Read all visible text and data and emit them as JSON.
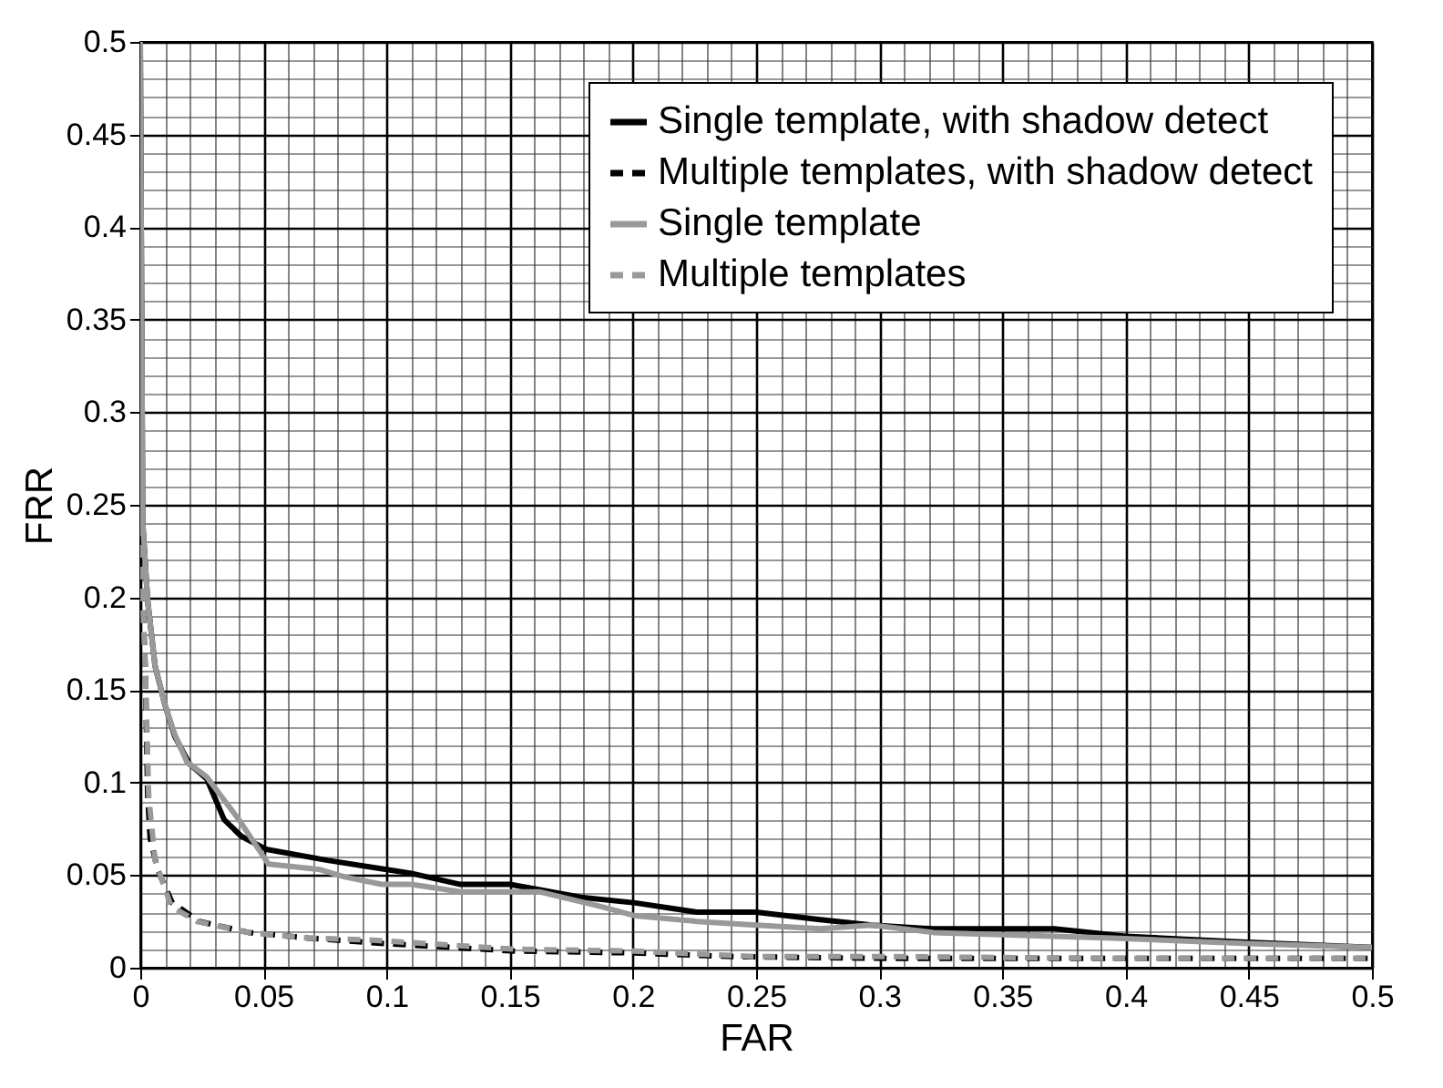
{
  "chart_data": {
    "type": "line",
    "xlabel": "FAR",
    "ylabel": "FRR",
    "xlim": [
      0,
      0.5
    ],
    "ylim": [
      0,
      0.5
    ],
    "xticks": [
      0,
      0.05,
      0.1,
      0.15,
      0.2,
      0.25,
      0.3,
      0.35,
      0.4,
      0.45,
      0.5
    ],
    "yticks": [
      0,
      0.05,
      0.1,
      0.15,
      0.2,
      0.25,
      0.3,
      0.35,
      0.4,
      0.45,
      0.5
    ],
    "grid": true,
    "legend": "top right",
    "marker": "none",
    "series": [
      {
        "name": "Single template, with shadow detect",
        "color": "#000000",
        "line_style": "solid",
        "x": [
          0,
          0.001,
          0.003,
          0.006,
          0.01,
          0.014,
          0.02,
          0.027,
          0.034,
          0.041,
          0.051,
          0.076,
          0.1,
          0.11,
          0.13,
          0.15,
          0.179,
          0.201,
          0.226,
          0.25,
          0.276,
          0.297,
          0.322,
          0.371,
          0.4,
          0.445,
          0.5
        ],
        "values": [
          0.5,
          0.24,
          0.198,
          0.163,
          0.142,
          0.125,
          0.11,
          0.102,
          0.08,
          0.071,
          0.064,
          0.058,
          0.053,
          0.051,
          0.045,
          0.045,
          0.038,
          0.035,
          0.03,
          0.03,
          0.026,
          0.023,
          0.021,
          0.021,
          0.017,
          0.014,
          0.011
        ]
      },
      {
        "name": "Multiple templates, with shadow detect",
        "color": "#000000",
        "line_style": "dashed",
        "x": [
          0,
          0,
          0.002,
          0.003,
          0.004,
          0.007,
          0.013,
          0.024,
          0.044,
          0.068,
          0.1,
          0.152,
          0.2,
          0.241,
          0.305,
          0.4,
          0.5
        ],
        "values": [
          0.5,
          0.233,
          0.163,
          0.093,
          0.07,
          0.053,
          0.035,
          0.025,
          0.019,
          0.016,
          0.013,
          0.009,
          0.008,
          0.006,
          0.005,
          0.005,
          0.005
        ]
      },
      {
        "name": "Single template",
        "color": "#999999",
        "line_style": "solid",
        "x": [
          0,
          0.001,
          0.003,
          0.006,
          0.01,
          0.014,
          0.019,
          0.027,
          0.04,
          0.052,
          0.073,
          0.083,
          0.098,
          0.11,
          0.13,
          0.162,
          0.187,
          0.201,
          0.226,
          0.25,
          0.276,
          0.297,
          0.322,
          0.395,
          0.45,
          0.5
        ],
        "values": [
          0.5,
          0.24,
          0.198,
          0.163,
          0.142,
          0.126,
          0.111,
          0.103,
          0.08,
          0.056,
          0.053,
          0.049,
          0.045,
          0.045,
          0.041,
          0.041,
          0.033,
          0.028,
          0.025,
          0.023,
          0.021,
          0.023,
          0.019,
          0.016,
          0.013,
          0.011
        ]
      },
      {
        "name": "Multiple templates",
        "color": "#999999",
        "line_style": "dashed",
        "x": [
          0,
          0,
          0.002,
          0.0034,
          0.006,
          0.0126,
          0.023,
          0.044,
          0.068,
          0.093,
          0.152,
          0.2,
          0.25,
          0.305,
          0.4,
          0.5
        ],
        "values": [
          0.5,
          0.233,
          0.163,
          0.093,
          0.058,
          0.033,
          0.025,
          0.019,
          0.016,
          0.015,
          0.01,
          0.009,
          0.006,
          0.006,
          0.005,
          0.005
        ]
      }
    ]
  }
}
